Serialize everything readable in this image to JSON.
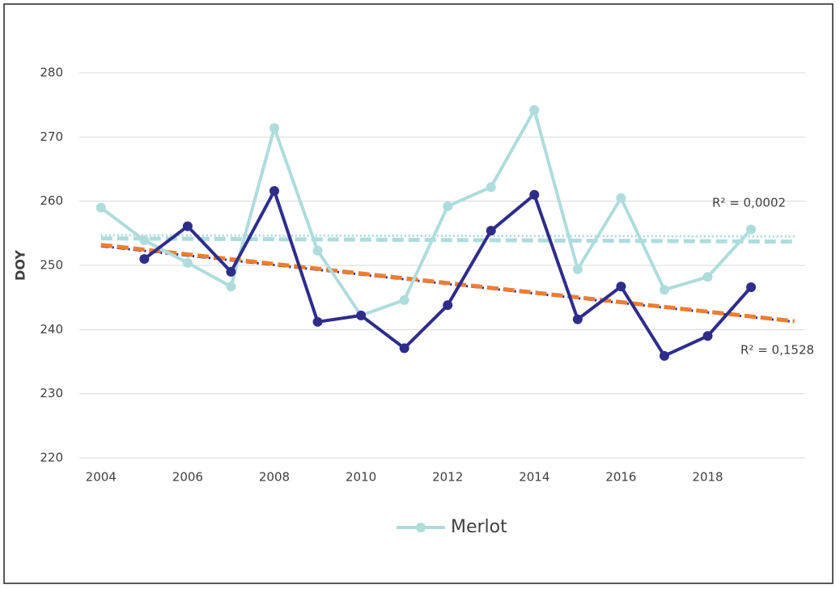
{
  "chart_data": {
    "type": "line",
    "y_label": "DOY",
    "x": [
      2004,
      2005,
      2006,
      2007,
      2008,
      2009,
      2010,
      2011,
      2012,
      2013,
      2014,
      2015,
      2016,
      2017,
      2018,
      2019
    ],
    "series": [
      {
        "name": "Merlot",
        "color": "#aedcdd",
        "values": [
          259,
          253.9,
          250.4,
          246.7,
          271.4,
          252.3,
          242.2,
          244.6,
          259.2,
          262.2,
          274.2,
          249.4,
          260.5,
          246.2,
          248.2,
          255.6
        ]
      },
      {
        "color": "#2e2d8c",
        "values": [
          null,
          251,
          256.1,
          249,
          261.6,
          241.2,
          242.2,
          237.1,
          243.8,
          255.4,
          261,
          241.6,
          246.7,
          235.9,
          239,
          246.6
        ]
      }
    ],
    "trendlines": [
      {
        "color": "#aedcdd",
        "style": "dotted",
        "x": [
          2004,
          2020
        ],
        "values": [
          254.7,
          254.5
        ]
      },
      {
        "color": "#aedcdd",
        "style": "dashed",
        "x": [
          2004,
          2020
        ],
        "values": [
          254.2,
          253.7
        ]
      },
      {
        "color": "#2e2d8c",
        "style": "dashdot",
        "x": [
          2004,
          2020
        ],
        "values": [
          253,
          241.2
        ]
      },
      {
        "color": "#ed7d31",
        "style": "dashed",
        "x": [
          2004,
          2020
        ],
        "values": [
          253.2,
          241.3
        ]
      }
    ],
    "annotations": [
      "R² = 0,0002",
      "R² = 0,1528"
    ],
    "xlim": [
      2003.5,
      2020.25
    ],
    "xticks": [
      2004,
      2006,
      2008,
      2010,
      2012,
      2014,
      2016,
      2018
    ],
    "ylim": [
      220,
      280
    ],
    "yticks": [
      220,
      230,
      240,
      250,
      260,
      270,
      280
    ],
    "grid": true,
    "legend": "bottom"
  }
}
